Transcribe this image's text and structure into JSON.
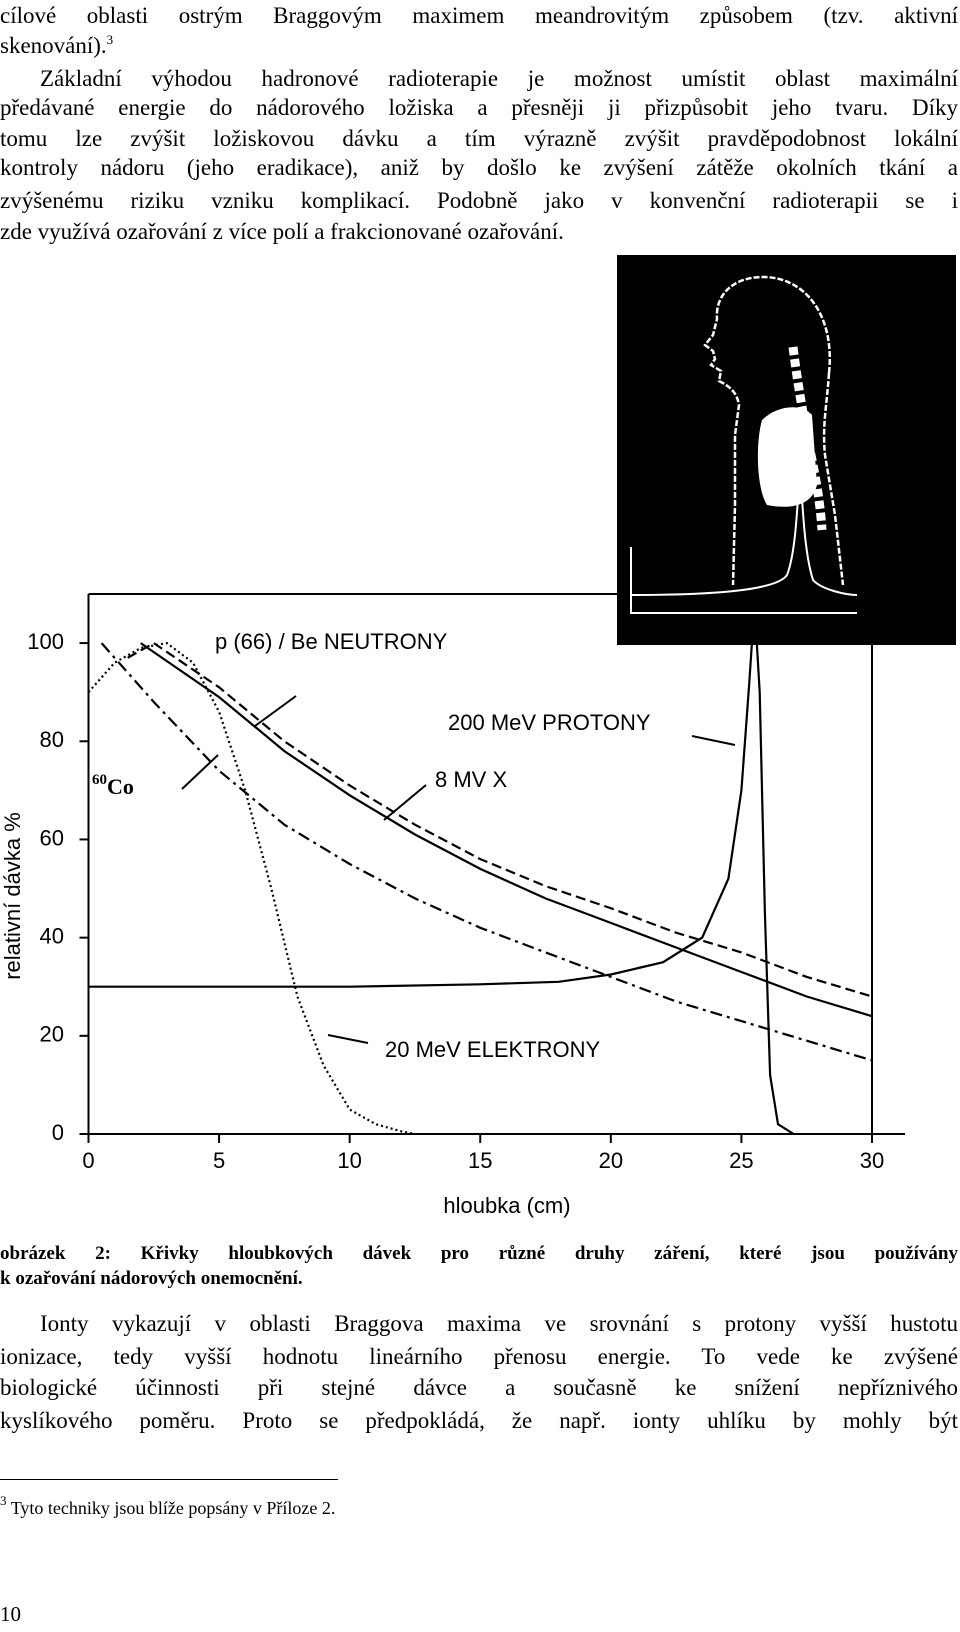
{
  "body": {
    "lines_1": [
      "cílové oblasti ostrým Braggovým maximem meandrovitým způsobem (tzv. aktivní",
      "skenování)."
    ],
    "footnote_ref": "3",
    "lines_2": [
      "Základní výhodou hadronové radioterapie je možnost umístit oblast maximální",
      "předávané energie do nádorového ložiska a přesněji ji přizpůsobit jeho tvaru. Díky",
      "tomu lze zvýšit ložiskovou dávku a tím výrazně zvýšit pravděpodobnost lokální",
      "kontroly nádoru (jeho eradikace), aniž by došlo ke zvýšení zátěže okolních tkání a",
      "zvýšenému riziku vzniku komplikací. Podobně jako v konvenční radioterapii se i",
      "zde využívá ozařování z více polí a frakcionované ozařování."
    ],
    "lines_3": [
      "Ionty vykazují v oblasti Braggova maxima ve srovnání s protony vyšší hustotu",
      "ionizace, tedy vyšší hodnotu lineárního přenosu energie. To vede ke zvýšené",
      "biologické účinnosti při stejné dávce a současně ke snížení nepříznivého",
      "kyslíkového poměru. Proto se předpokládá, že např. ionty uhlíku by mohly být"
    ]
  },
  "figure": {
    "chart_data": {
      "type": "line",
      "x_label": "hloubka (cm)",
      "y_label": "relativní dávka %",
      "xlim": [
        0,
        30
      ],
      "ylim": [
        0,
        110
      ],
      "xticks": [
        0,
        5,
        10,
        15,
        20,
        25,
        30
      ],
      "yticks": [
        0,
        20,
        40,
        60,
        80,
        100
      ],
      "series": [
        {
          "name": "p (66) / Be NEUTRONY",
          "color": "#000000",
          "line_style": "solid",
          "x": [
            2,
            5,
            7.5,
            10,
            12.5,
            15,
            17.5,
            20,
            22.5,
            25,
            27.5,
            30
          ],
          "values": [
            100,
            89,
            78,
            69,
            61,
            54,
            48,
            43,
            38,
            33,
            28,
            24
          ]
        },
        {
          "name": "200 MeV PROTONY",
          "color": "#000000",
          "line_style": "solid",
          "x": [
            0,
            5,
            10,
            15,
            18,
            20,
            22,
            23.5,
            24.5,
            25,
            25.3,
            25.5,
            25.7,
            25.9,
            26.1,
            26.4,
            27
          ],
          "values": [
            30,
            30,
            30,
            30.5,
            31,
            32.5,
            35,
            40,
            52,
            70,
            92,
            108,
            90,
            45,
            12,
            2,
            0
          ]
        },
        {
          "name": "8 MV X",
          "color": "#000000",
          "line_style": "dashed",
          "x": [
            1.5,
            2.5,
            5,
            7.5,
            10,
            12.5,
            15,
            17.5,
            20,
            22.5,
            25,
            27.5,
            30
          ],
          "values": [
            97,
            100,
            91,
            80,
            71,
            63,
            56,
            50.5,
            46,
            41,
            37,
            32,
            28
          ]
        },
        {
          "name": "Co",
          "name_sup": "60",
          "color": "#000000",
          "line_style": "dashdot",
          "x": [
            0.5,
            1,
            2.5,
            5,
            7.5,
            10,
            12.5,
            15,
            17.5,
            20,
            22.5,
            25,
            27.5,
            30
          ],
          "values": [
            100,
            97,
            88,
            74,
            63,
            55,
            48,
            42,
            37,
            32,
            27,
            23,
            19,
            15
          ]
        },
        {
          "name": "20 MeV ELEKTRONY",
          "color": "#000000",
          "line_style": "dotted",
          "x": [
            0,
            1,
            2,
            3,
            4,
            5,
            6,
            7,
            8,
            9,
            10,
            11,
            12,
            12.5
          ],
          "values": [
            90,
            96,
            99,
            100,
            96,
            86,
            70,
            50,
            28,
            14,
            5,
            2,
            0.5,
            0
          ]
        }
      ]
    },
    "caption_lines": [
      "obrázek 2: Křivky hloubkových dávek pro různé druhy záření, které jsou používány",
      "k ozařování nádorových onemocnění."
    ]
  },
  "footnote": {
    "mark": "3",
    "text": "Tyto techniky jsou blíže popsány v Příloze 2."
  },
  "page_number": "10"
}
